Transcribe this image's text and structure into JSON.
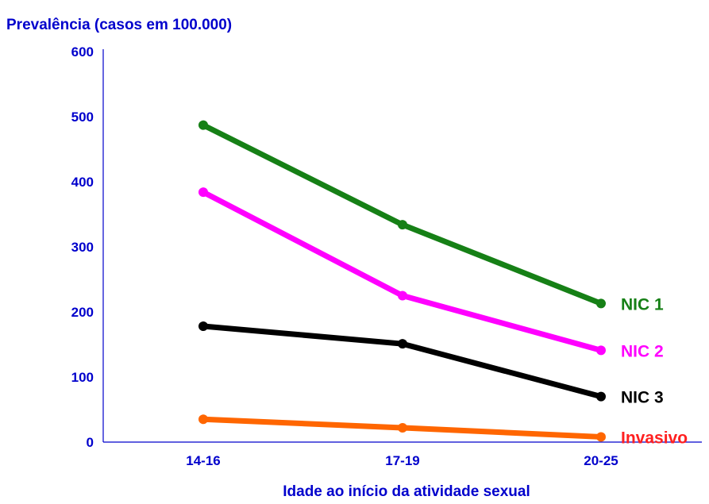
{
  "chart_data": {
    "type": "line",
    "title": "",
    "ylabel": "Prevalência (casos em 100.000)",
    "xlabel": "Idade ao início da atividade sexual",
    "categories": [
      "14-16",
      "17-19",
      "20-25"
    ],
    "ylim": [
      0,
      600
    ],
    "yticks": [
      "0",
      "100",
      "200",
      "300",
      "400",
      "500",
      "600"
    ],
    "grid": false,
    "series": [
      {
        "name": "NIC 1",
        "values": [
          487,
          334,
          213
        ],
        "color": "#168016"
      },
      {
        "name": "NIC 2",
        "values": [
          384,
          225,
          141
        ],
        "color": "#ff00ff"
      },
      {
        "name": "NIC 3",
        "values": [
          178,
          151,
          70
        ],
        "color": "#000000"
      },
      {
        "name": "Invasivo",
        "values": [
          35,
          22,
          8
        ],
        "color": "#ff6600",
        "label_color": "#ff2020"
      }
    ],
    "axis_color": "#0000cc",
    "text_color": "#0000cc"
  }
}
